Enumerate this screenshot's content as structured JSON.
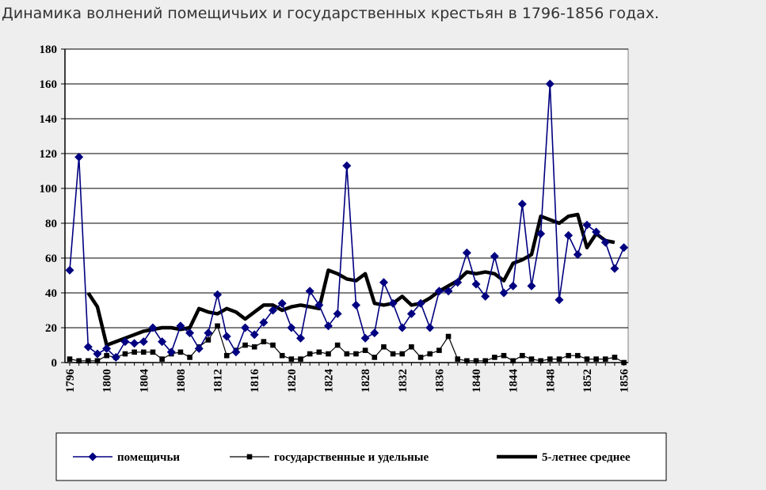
{
  "title": "Динамика волнений помещичьих и государственных крестьян  в 1796-1856 годах.",
  "chart_data": {
    "type": "line",
    "title": "Динамика волнений помещичьих и государственных крестьян  в 1796-1856 годах.",
    "xlabel": "",
    "ylabel": "",
    "xlim": [
      1796,
      1857
    ],
    "ylim": [
      0,
      180
    ],
    "grid": true,
    "legend_position": "bottom",
    "y_ticks": [
      0,
      20,
      40,
      60,
      80,
      100,
      120,
      140,
      160,
      180
    ],
    "x_ticks": [
      1796,
      1800,
      1804,
      1808,
      1812,
      1816,
      1820,
      1824,
      1828,
      1832,
      1836,
      1840,
      1844,
      1848,
      1852,
      1856
    ],
    "series": [
      {
        "name": "помещичьи",
        "color": "#000080",
        "marker": "diamond",
        "points": [
          [
            1796,
            53
          ],
          [
            1797,
            118
          ],
          [
            1798,
            9
          ],
          [
            1799,
            5
          ],
          [
            1800,
            8
          ],
          [
            1801,
            3
          ],
          [
            1802,
            12
          ],
          [
            1803,
            11
          ],
          [
            1804,
            12
          ],
          [
            1805,
            20
          ],
          [
            1806,
            12
          ],
          [
            1807,
            6
          ],
          [
            1808,
            21
          ],
          [
            1809,
            17
          ],
          [
            1810,
            8
          ],
          [
            1811,
            17
          ],
          [
            1812,
            39
          ],
          [
            1813,
            15
          ],
          [
            1814,
            6
          ],
          [
            1815,
            20
          ],
          [
            1816,
            16
          ],
          [
            1817,
            23
          ],
          [
            1818,
            30
          ],
          [
            1819,
            34
          ],
          [
            1820,
            20
          ],
          [
            1821,
            14
          ],
          [
            1822,
            41
          ],
          [
            1823,
            33
          ],
          [
            1824,
            21
          ],
          [
            1825,
            28
          ],
          [
            1826,
            113
          ],
          [
            1827,
            33
          ],
          [
            1828,
            14
          ],
          [
            1829,
            17
          ],
          [
            1830,
            46
          ],
          [
            1831,
            34
          ],
          [
            1832,
            20
          ],
          [
            1833,
            28
          ],
          [
            1834,
            34
          ],
          [
            1835,
            20
          ],
          [
            1836,
            41
          ],
          [
            1837,
            41
          ],
          [
            1838,
            46
          ],
          [
            1839,
            63
          ],
          [
            1840,
            45
          ],
          [
            1841,
            38
          ],
          [
            1842,
            61
          ],
          [
            1843,
            40
          ],
          [
            1844,
            44
          ],
          [
            1845,
            91
          ],
          [
            1846,
            44
          ],
          [
            1847,
            74
          ],
          [
            1848,
            160
          ],
          [
            1849,
            36
          ],
          [
            1850,
            73
          ],
          [
            1851,
            62
          ],
          [
            1852,
            79
          ],
          [
            1853,
            75
          ],
          [
            1854,
            69
          ],
          [
            1855,
            54
          ],
          [
            1856,
            66
          ]
        ]
      },
      {
        "name": "государственные и удельные",
        "color": "#000000",
        "marker": "square",
        "points": [
          [
            1796,
            2
          ],
          [
            1797,
            1
          ],
          [
            1798,
            1
          ],
          [
            1799,
            1
          ],
          [
            1800,
            4
          ],
          [
            1801,
            3
          ],
          [
            1802,
            5
          ],
          [
            1803,
            6
          ],
          [
            1804,
            6
          ],
          [
            1805,
            6
          ],
          [
            1806,
            2
          ],
          [
            1807,
            5
          ],
          [
            1808,
            6
          ],
          [
            1809,
            3
          ],
          [
            1810,
            9
          ],
          [
            1811,
            13
          ],
          [
            1812,
            21
          ],
          [
            1813,
            4
          ],
          [
            1814,
            7
          ],
          [
            1815,
            10
          ],
          [
            1816,
            9
          ],
          [
            1817,
            12
          ],
          [
            1818,
            10
          ],
          [
            1819,
            4
          ],
          [
            1820,
            2
          ],
          [
            1821,
            2
          ],
          [
            1822,
            5
          ],
          [
            1823,
            6
          ],
          [
            1824,
            5
          ],
          [
            1825,
            10
          ],
          [
            1826,
            5
          ],
          [
            1827,
            5
          ],
          [
            1828,
            7
          ],
          [
            1829,
            3
          ],
          [
            1830,
            9
          ],
          [
            1831,
            5
          ],
          [
            1832,
            5
          ],
          [
            1833,
            9
          ],
          [
            1834,
            3
          ],
          [
            1835,
            5
          ],
          [
            1836,
            7
          ],
          [
            1837,
            15
          ],
          [
            1838,
            2
          ],
          [
            1839,
            1
          ],
          [
            1840,
            1
          ],
          [
            1841,
            1
          ],
          [
            1842,
            3
          ],
          [
            1843,
            4
          ],
          [
            1844,
            1
          ],
          [
            1845,
            4
          ],
          [
            1846,
            2
          ],
          [
            1847,
            1
          ],
          [
            1848,
            2
          ],
          [
            1849,
            2
          ],
          [
            1850,
            4
          ],
          [
            1851,
            4
          ],
          [
            1852,
            2
          ],
          [
            1853,
            2
          ],
          [
            1854,
            2
          ],
          [
            1855,
            3
          ],
          [
            1856,
            0
          ]
        ]
      },
      {
        "name": "5-летнее среднее",
        "color": "#000000",
        "marker": "none",
        "points": [
          [
            1798,
            40
          ],
          [
            1799,
            32
          ],
          [
            1800,
            10
          ],
          [
            1801,
            12
          ],
          [
            1802,
            14
          ],
          [
            1803,
            16
          ],
          [
            1804,
            18
          ],
          [
            1805,
            19
          ],
          [
            1806,
            20
          ],
          [
            1807,
            20
          ],
          [
            1808,
            19
          ],
          [
            1809,
            20
          ],
          [
            1810,
            31
          ],
          [
            1811,
            29
          ],
          [
            1812,
            28
          ],
          [
            1813,
            31
          ],
          [
            1814,
            29
          ],
          [
            1815,
            25
          ],
          [
            1816,
            29
          ],
          [
            1817,
            33
          ],
          [
            1818,
            33
          ],
          [
            1819,
            30
          ],
          [
            1820,
            32
          ],
          [
            1821,
            33
          ],
          [
            1822,
            32
          ],
          [
            1823,
            31
          ],
          [
            1824,
            53
          ],
          [
            1825,
            51
          ],
          [
            1826,
            48
          ],
          [
            1827,
            47
          ],
          [
            1828,
            51
          ],
          [
            1829,
            34
          ],
          [
            1830,
            33
          ],
          [
            1831,
            34
          ],
          [
            1832,
            38
          ],
          [
            1833,
            33
          ],
          [
            1834,
            34
          ],
          [
            1835,
            37
          ],
          [
            1836,
            41
          ],
          [
            1837,
            44
          ],
          [
            1838,
            47
          ],
          [
            1839,
            52
          ],
          [
            1840,
            51
          ],
          [
            1841,
            52
          ],
          [
            1842,
            51
          ],
          [
            1843,
            47
          ],
          [
            1844,
            57
          ],
          [
            1845,
            59
          ],
          [
            1846,
            62
          ],
          [
            1847,
            84
          ],
          [
            1848,
            82
          ],
          [
            1849,
            80
          ],
          [
            1850,
            84
          ],
          [
            1851,
            85
          ],
          [
            1852,
            66
          ],
          [
            1853,
            74
          ],
          [
            1854,
            70
          ],
          [
            1855,
            69
          ]
        ]
      }
    ]
  }
}
